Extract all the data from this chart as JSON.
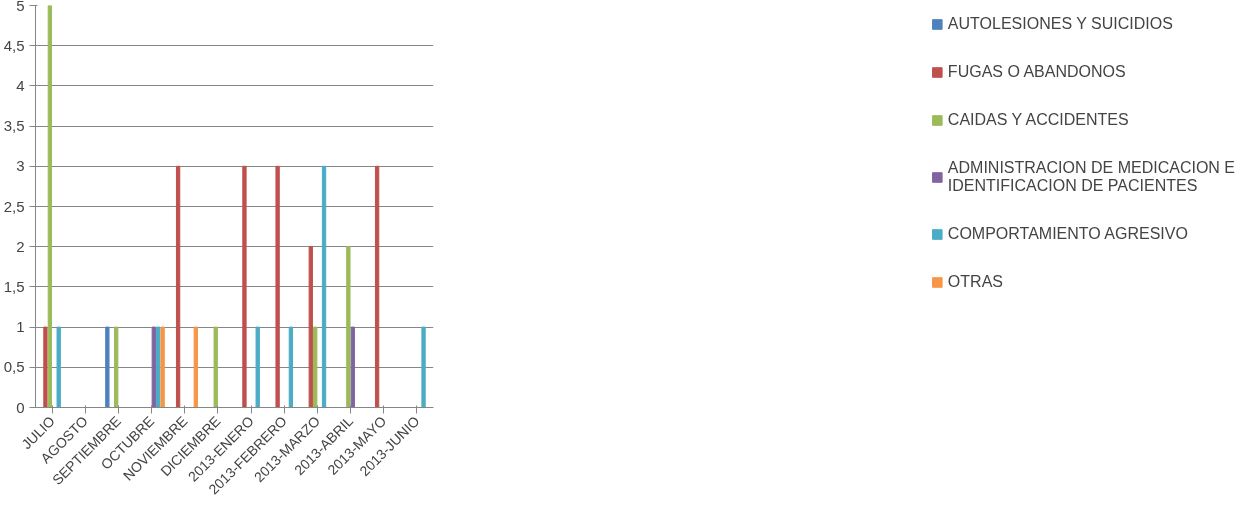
{
  "chart_data": {
    "type": "bar",
    "categories": [
      "JULIO",
      "AGOSTO",
      "SEPTIEMBRE",
      "OCTUBRE",
      "NOVIEMBRE",
      "DICIEMBRE",
      "2013-ENERO",
      "2013-FEBRERO",
      "2013-MARZO",
      "2013-ABRIL",
      "2013-MAYO",
      "2013-JUNIO"
    ],
    "series": [
      {
        "name": "AUTOLESIONES Y SUICIDIOS",
        "color": "#4f81bd",
        "values": [
          0,
          0,
          1,
          0,
          0,
          0,
          0,
          0,
          0,
          0,
          0,
          0
        ]
      },
      {
        "name": "FUGAS O ABANDONOS",
        "color": "#c0504d",
        "values": [
          1,
          0,
          0,
          0,
          3,
          0,
          3,
          3,
          2,
          0,
          3,
          0
        ]
      },
      {
        "name": "CAIDAS Y ACCIDENTES",
        "color": "#9bbb59",
        "values": [
          5,
          0,
          1,
          0,
          0,
          1,
          0,
          0,
          1,
          2,
          0,
          0
        ]
      },
      {
        "name": "ADMINISTRACION DE MEDICACION E IDENTIFICACION DE PACIENTES",
        "color": "#8064a2",
        "values": [
          0,
          0,
          0,
          1,
          0,
          0,
          0,
          0,
          0,
          1,
          0,
          0
        ]
      },
      {
        "name": "COMPORTAMIENTO AGRESIVO",
        "color": "#4bacc6",
        "values": [
          1,
          0,
          0,
          1,
          0,
          0,
          1,
          1,
          3,
          0,
          0,
          1
        ]
      },
      {
        "name": "OTRAS",
        "color": "#f79646",
        "values": [
          0,
          0,
          0,
          1,
          1,
          0,
          0,
          0,
          0,
          0,
          0,
          0
        ]
      }
    ],
    "ylim": [
      0,
      5
    ],
    "yticks": [
      0,
      {
        "value": 0.5,
        "label": "0,5"
      },
      1,
      {
        "value": 1.5,
        "label": "1,5"
      },
      2,
      {
        "value": 2.5,
        "label": "2,5"
      },
      3,
      {
        "value": 3.5,
        "label": "3,5"
      },
      4,
      {
        "value": 4.5,
        "label": "4,5"
      },
      5
    ],
    "grid": "y",
    "legend": "right"
  }
}
